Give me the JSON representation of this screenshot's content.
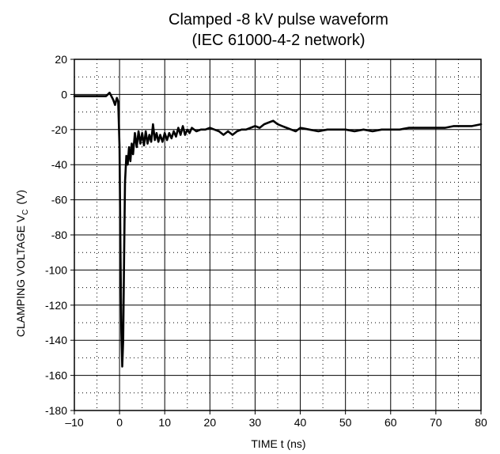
{
  "chart_data": {
    "type": "line",
    "title": "Clamped -8 kV pulse waveform",
    "subtitle": "(IEC 61000-4-2 network)",
    "xlabel": "TIME  t (ns)",
    "ylabel_main": "CLAMPING VOLTAGE  V",
    "ylabel_sub": "C",
    "ylabel_unit": "(V)",
    "xlim": [
      -10,
      80
    ],
    "ylim": [
      -180,
      20
    ],
    "xticks": [
      -10,
      0,
      10,
      20,
      30,
      40,
      50,
      60,
      70,
      80
    ],
    "yticks": [
      20,
      0,
      -20,
      -40,
      -60,
      -80,
      -100,
      -120,
      -140,
      -160,
      -180
    ],
    "grid": "major solid, minor dotted",
    "series": [
      {
        "color": "#000000",
        "x": [
          -10,
          -8,
          -6,
          -5,
          -4,
          -3,
          -2.6,
          -2.2,
          -1.8,
          -1.4,
          -1,
          -0.6,
          -0.3,
          0,
          0.2,
          0.4,
          0.6,
          0.8,
          1.0,
          1.2,
          1.5,
          1.8,
          2.1,
          2.4,
          2.7,
          3.0,
          3.4,
          3.8,
          4.2,
          4.6,
          5.0,
          5.4,
          5.8,
          6.2,
          6.6,
          7.0,
          7.4,
          7.8,
          8.2,
          8.6,
          9.0,
          9.5,
          10.0,
          10.5,
          11.0,
          11.5,
          12.0,
          12.5,
          13.0,
          13.5,
          14.0,
          14.5,
          15.0,
          15.5,
          16.0,
          17.0,
          18.0,
          19.0,
          20.0,
          21.0,
          22.0,
          23.0,
          24.0,
          25.0,
          26.0,
          27.0,
          28.0,
          29.0,
          30.0,
          31.0,
          32.0,
          33.0,
          34.0,
          35.0,
          36.0,
          37.0,
          38.0,
          39.0,
          40.0,
          42.0,
          44.0,
          46.0,
          48.0,
          50.0,
          52.0,
          54.0,
          56.0,
          58.0,
          60.0,
          62.0,
          64.0,
          66.0,
          68.0,
          70.0,
          72.0,
          74.0,
          76.0,
          78.0,
          80.0
        ],
        "y": [
          -1,
          -1,
          -1,
          -1,
          -1,
          -1,
          0,
          1,
          -1,
          -3,
          -6,
          -2,
          -4,
          -30,
          -90,
          -135,
          -155,
          -140,
          -95,
          -50,
          -35,
          -40,
          -30,
          -38,
          -28,
          -34,
          -22,
          -30,
          -21,
          -28,
          -22,
          -29,
          -21,
          -28,
          -23,
          -27,
          -17,
          -26,
          -22,
          -27,
          -23,
          -27,
          -22,
          -26,
          -22,
          -25,
          -21,
          -24,
          -19,
          -23,
          -18,
          -23,
          -20,
          -22,
          -19,
          -21,
          -20,
          -20,
          -19,
          -20,
          -21,
          -23,
          -21,
          -23,
          -21,
          -20,
          -20,
          -19,
          -18,
          -19,
          -17,
          -16,
          -15,
          -17,
          -18,
          -19,
          -20,
          -21,
          -19,
          -20,
          -21,
          -20,
          -20,
          -20,
          -21,
          -20,
          -21,
          -20,
          -20,
          -20,
          -19,
          -19,
          -19,
          -19,
          -19,
          -18,
          -18,
          -18,
          -17
        ]
      }
    ]
  }
}
